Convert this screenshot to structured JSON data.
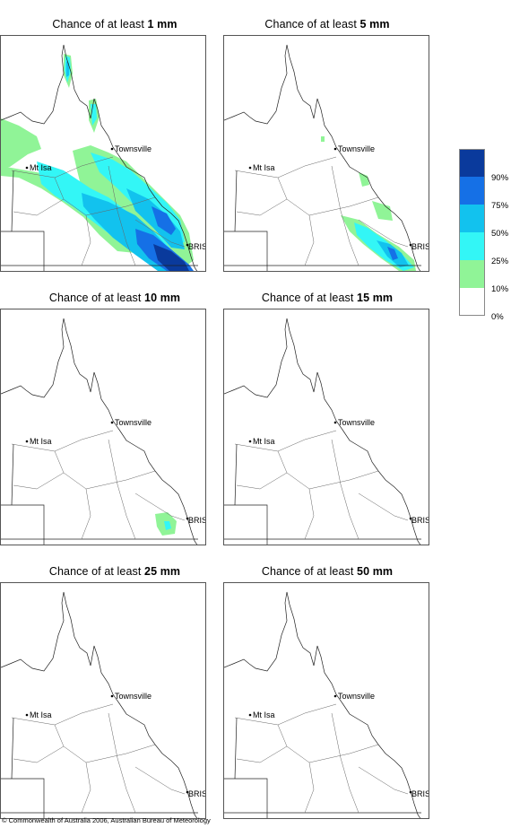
{
  "title_prefix": "Chance of at least",
  "panels": [
    {
      "threshold": "1 mm"
    },
    {
      "threshold": "5 mm"
    },
    {
      "threshold": "10 mm"
    },
    {
      "threshold": "15 mm"
    },
    {
      "threshold": "25 mm"
    },
    {
      "threshold": "50 mm"
    }
  ],
  "places": {
    "townsville": "Townsville",
    "mt_isa": "Mt Isa",
    "bris": "BRIS"
  },
  "legend": {
    "labels": [
      "90%",
      "75%",
      "50%",
      "25%",
      "10%",
      "0%"
    ],
    "colors": [
      "#0a3a9c",
      "#1570e6",
      "#12c2ee",
      "#33f6f6",
      "#90f497",
      "#ffffff"
    ]
  },
  "copyright": "© Commonwealth of Australia 2006, Australian Bureau of Meteorology"
}
